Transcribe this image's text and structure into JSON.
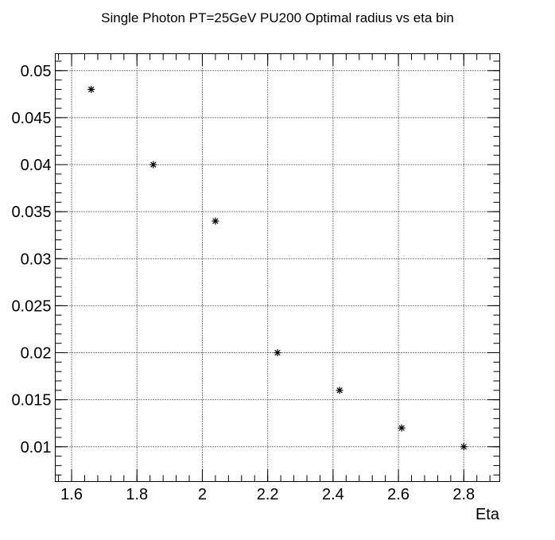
{
  "chart_data": {
    "type": "scatter",
    "title": "Single Photon PT=25GeV PU200 Optimal radius vs eta bin",
    "xlabel": "Eta",
    "ylabel": "",
    "xlim": [
      1.55,
      2.91
    ],
    "ylim": [
      0.0063,
      0.0518
    ],
    "x_ticks": [
      1.6,
      1.8,
      2.0,
      2.2,
      2.4,
      2.6,
      2.8
    ],
    "x_tick_labels": [
      "1.6",
      "1.8",
      "2",
      "2.2",
      "2.4",
      "2.6",
      "2.8"
    ],
    "y_ticks": [
      0.01,
      0.015,
      0.02,
      0.025,
      0.03,
      0.035,
      0.04,
      0.045,
      0.05
    ],
    "y_tick_labels": [
      "0.01",
      "0.015",
      "0.02",
      "0.025",
      "0.03",
      "0.035",
      "0.04",
      "0.045",
      "0.05"
    ],
    "grid": true,
    "marker": "asterisk",
    "color": "#000000",
    "series": [
      {
        "x": [
          1.66,
          1.85,
          2.04,
          2.23,
          2.42,
          2.61,
          2.8
        ],
        "y": [
          0.048,
          0.04,
          0.034,
          0.02,
          0.016,
          0.012,
          0.01
        ]
      }
    ]
  }
}
